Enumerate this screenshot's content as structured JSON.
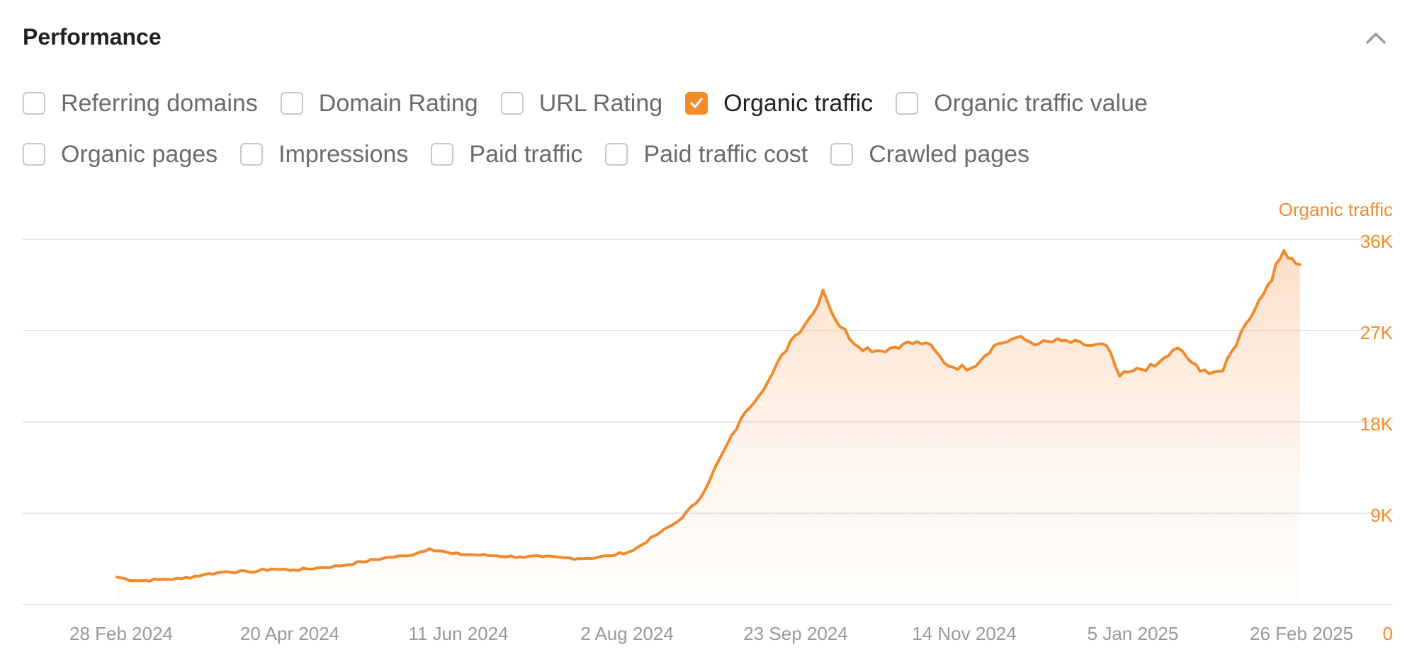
{
  "header": {
    "title": "Performance",
    "collapse_icon": "chevron-up-icon"
  },
  "metrics": [
    [
      {
        "label": "Referring domains",
        "checked": false
      },
      {
        "label": "Domain Rating",
        "checked": false
      },
      {
        "label": "URL Rating",
        "checked": false
      },
      {
        "label": "Organic traffic",
        "checked": true
      },
      {
        "label": "Organic traffic value",
        "checked": false
      }
    ],
    [
      {
        "label": "Organic pages",
        "checked": false
      },
      {
        "label": "Impressions",
        "checked": false
      },
      {
        "label": "Paid traffic",
        "checked": false
      },
      {
        "label": "Paid traffic cost",
        "checked": false
      },
      {
        "label": "Crawled pages",
        "checked": false
      }
    ]
  ],
  "colors": {
    "accent": "#f28c28",
    "grid": "#e6e6e6",
    "axis_text": "#999999"
  },
  "chart_data": {
    "type": "area",
    "series_name": "Organic traffic",
    "x_ticks": [
      "28 Feb 2024",
      "20 Apr 2024",
      "11 Jun 2024",
      "2 Aug 2024",
      "23 Sep 2024",
      "14 Nov 2024",
      "5 Jan 2025",
      "26 Feb 2025"
    ],
    "y_ticks": [
      "0",
      "9K",
      "18K",
      "27K",
      "36K"
    ],
    "ylim": [
      0,
      36000
    ],
    "y_axis_position": "right",
    "grid": true,
    "x_start": "2024-02-25",
    "x_end": "2025-02-26",
    "points": [
      [
        "2024-02-25",
        2700
      ],
      [
        "2024-03-02",
        2350
      ],
      [
        "2024-03-09",
        2450
      ],
      [
        "2024-03-16",
        2550
      ],
      [
        "2024-03-23",
        2950
      ],
      [
        "2024-03-30",
        3250
      ],
      [
        "2024-04-06",
        3200
      ],
      [
        "2024-04-13",
        3500
      ],
      [
        "2024-04-20",
        3400
      ],
      [
        "2024-04-27",
        3600
      ],
      [
        "2024-05-04",
        3800
      ],
      [
        "2024-05-11",
        4200
      ],
      [
        "2024-05-18",
        4600
      ],
      [
        "2024-05-25",
        4800
      ],
      [
        "2024-06-01",
        5500
      ],
      [
        "2024-06-08",
        5000
      ],
      [
        "2024-06-15",
        4900
      ],
      [
        "2024-06-22",
        4800
      ],
      [
        "2024-06-29",
        4700
      ],
      [
        "2024-07-06",
        4700
      ],
      [
        "2024-07-13",
        4600
      ],
      [
        "2024-07-20",
        4550
      ],
      [
        "2024-07-27",
        4800
      ],
      [
        "2024-08-03",
        5300
      ],
      [
        "2024-08-10",
        6800
      ],
      [
        "2024-08-17",
        8200
      ],
      [
        "2024-08-24",
        10500
      ],
      [
        "2024-08-31",
        15000
      ],
      [
        "2024-09-07",
        19000
      ],
      [
        "2024-09-14",
        22000
      ],
      [
        "2024-09-21",
        26000
      ],
      [
        "2024-09-28",
        28700
      ],
      [
        "2024-10-01",
        31000
      ],
      [
        "2024-10-05",
        28000
      ],
      [
        "2024-10-12",
        25400
      ],
      [
        "2024-10-19",
        25000
      ],
      [
        "2024-10-26",
        25700
      ],
      [
        "2024-11-02",
        25800
      ],
      [
        "2024-11-09",
        23500
      ],
      [
        "2024-11-16",
        23300
      ],
      [
        "2024-11-23",
        25500
      ],
      [
        "2024-11-30",
        26300
      ],
      [
        "2024-12-07",
        25700
      ],
      [
        "2024-12-14",
        26000
      ],
      [
        "2024-12-21",
        25600
      ],
      [
        "2024-12-28",
        25500
      ],
      [
        "2025-01-01",
        22500
      ],
      [
        "2025-01-05",
        23000
      ],
      [
        "2025-01-12",
        23500
      ],
      [
        "2025-01-19",
        25300
      ],
      [
        "2025-01-26",
        23000
      ],
      [
        "2025-02-02",
        23000
      ],
      [
        "2025-02-09",
        27600
      ],
      [
        "2025-02-16",
        31500
      ],
      [
        "2025-02-21",
        34900
      ],
      [
        "2025-02-26",
        33500
      ]
    ]
  }
}
